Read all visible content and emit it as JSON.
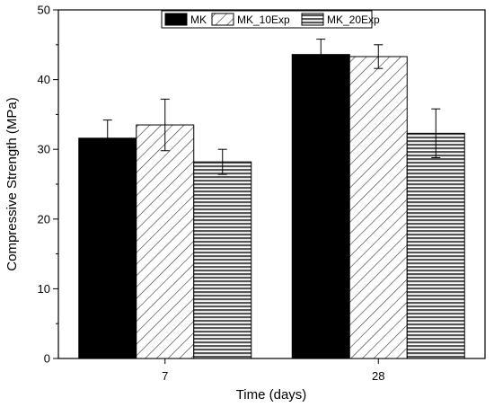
{
  "chart_data": {
    "type": "bar",
    "title": "",
    "xlabel": "Time (days)",
    "ylabel": "Compressive Strength (MPa)",
    "categories": [
      "7",
      "28"
    ],
    "ylim": [
      0,
      50
    ],
    "yticks": [
      0,
      10,
      20,
      30,
      40,
      50
    ],
    "grid": false,
    "legend_position": "top",
    "series": [
      {
        "name": "MK",
        "values": [
          31.6,
          43.6
        ],
        "errors": [
          2.6,
          2.2
        ],
        "fill": "solid black"
      },
      {
        "name": "MK_10Exp",
        "values": [
          33.5,
          43.3
        ],
        "errors": [
          3.7,
          1.7
        ],
        "fill": "diagonal hatch"
      },
      {
        "name": "MK_20Exp",
        "values": [
          28.2,
          32.3
        ],
        "errors": [
          1.8,
          3.5
        ],
        "fill": "horizontal hatch"
      }
    ]
  }
}
